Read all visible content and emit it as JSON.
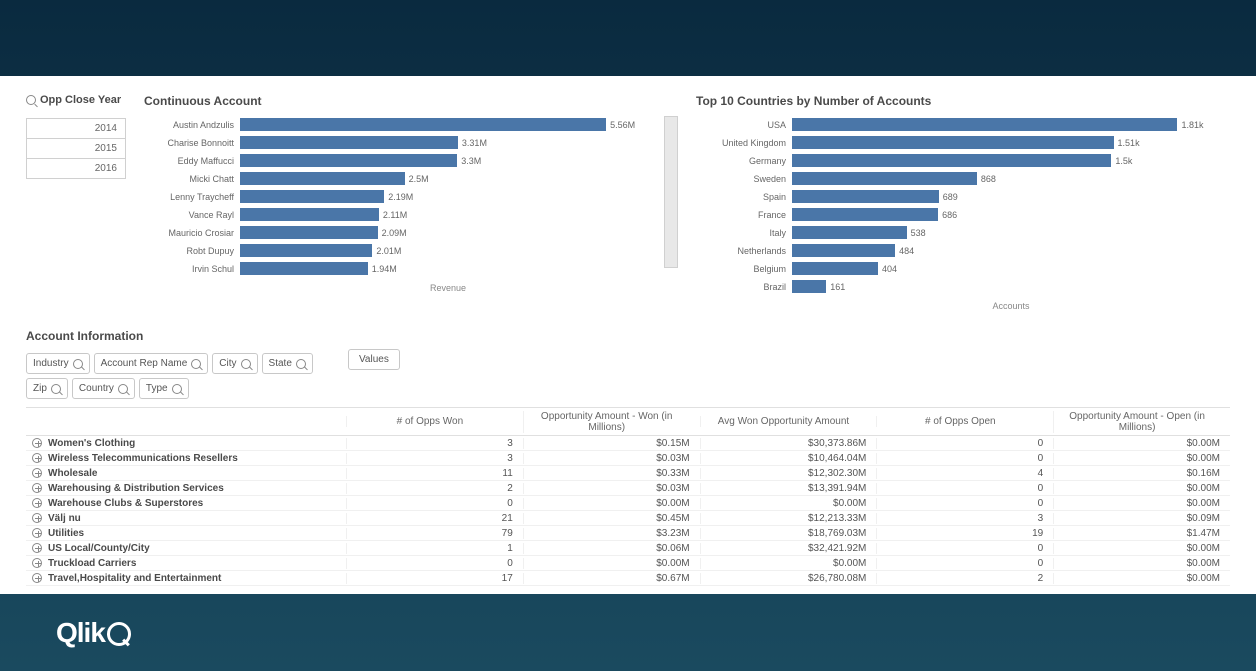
{
  "filter": {
    "title": "Opp Close Year",
    "years": [
      "2014",
      "2015",
      "2016"
    ]
  },
  "chart1": {
    "type": "bar",
    "title": "Continuous Account",
    "axis_label": "Revenue",
    "bar_color": "#4a76a8",
    "label_color": "#666666",
    "max_value": 5.56,
    "bars": [
      {
        "label": "Austin Andzulis",
        "value": 5.56,
        "display": "5.56M"
      },
      {
        "label": "Charise Bonnoitt",
        "value": 3.31,
        "display": "3.31M"
      },
      {
        "label": "Eddy Maffucci",
        "value": 3.3,
        "display": "3.3M"
      },
      {
        "label": "Micki Chatt",
        "value": 2.5,
        "display": "2.5M"
      },
      {
        "label": "Lenny Traycheff",
        "value": 2.19,
        "display": "2.19M"
      },
      {
        "label": "Vance Rayl",
        "value": 2.11,
        "display": "2.11M"
      },
      {
        "label": "Mauricio Crosiar",
        "value": 2.09,
        "display": "2.09M"
      },
      {
        "label": "Robt Dupuy",
        "value": 2.01,
        "display": "2.01M"
      },
      {
        "label": "Irvin Schul",
        "value": 1.94,
        "display": "1.94M"
      }
    ]
  },
  "chart2": {
    "type": "bar",
    "title": "Top 10 Countries by Number of Accounts",
    "axis_label": "Accounts",
    "bar_color": "#4a76a8",
    "label_color": "#666666",
    "max_value": 1810,
    "bars": [
      {
        "label": "USA",
        "value": 1810,
        "display": "1.81k"
      },
      {
        "label": "United Kingdom",
        "value": 1510,
        "display": "1.51k"
      },
      {
        "label": "Germany",
        "value": 1500,
        "display": "1.5k"
      },
      {
        "label": "Sweden",
        "value": 868,
        "display": "868"
      },
      {
        "label": "Spain",
        "value": 689,
        "display": "689"
      },
      {
        "label": "France",
        "value": 686,
        "display": "686"
      },
      {
        "label": "Italy",
        "value": 538,
        "display": "538"
      },
      {
        "label": "Netherlands",
        "value": 484,
        "display": "484"
      },
      {
        "label": "Belgium",
        "value": 404,
        "display": "404"
      },
      {
        "label": "Brazil",
        "value": 161,
        "display": "161"
      }
    ]
  },
  "account_info": {
    "title": "Account Information",
    "filters": [
      "Industry",
      "Account Rep Name",
      "City",
      "State",
      "Zip",
      "Country",
      "Type"
    ],
    "values_label": "Values",
    "columns": [
      "# of Opps Won",
      "Opportunity Amount - Won (in Millions)",
      "Avg Won Opportunity Amount",
      "# of Opps Open",
      "Opportunity Amount - Open (in Millions)"
    ],
    "rows": [
      {
        "name": "Women's Clothing",
        "c": [
          "3",
          "$0.15M",
          "$30,373.86M",
          "0",
          "$0.00M"
        ]
      },
      {
        "name": "Wireless Telecommunications Resellers",
        "c": [
          "3",
          "$0.03M",
          "$10,464.04M",
          "0",
          "$0.00M"
        ]
      },
      {
        "name": "Wholesale",
        "c": [
          "11",
          "$0.33M",
          "$12,302.30M",
          "4",
          "$0.16M"
        ]
      },
      {
        "name": "Warehousing & Distribution Services",
        "c": [
          "2",
          "$0.03M",
          "$13,391.94M",
          "0",
          "$0.00M"
        ]
      },
      {
        "name": "Warehouse Clubs & Superstores",
        "c": [
          "0",
          "$0.00M",
          "$0.00M",
          "0",
          "$0.00M"
        ]
      },
      {
        "name": "Välj nu",
        "c": [
          "21",
          "$0.45M",
          "$12,213.33M",
          "3",
          "$0.09M"
        ]
      },
      {
        "name": "Utilities",
        "c": [
          "79",
          "$3.23M",
          "$18,769.03M",
          "19",
          "$1.47M"
        ]
      },
      {
        "name": "US Local/County/City",
        "c": [
          "1",
          "$0.06M",
          "$32,421.92M",
          "0",
          "$0.00M"
        ]
      },
      {
        "name": "Truckload Carriers",
        "c": [
          "0",
          "$0.00M",
          "$0.00M",
          "0",
          "$0.00M"
        ]
      },
      {
        "name": "Travel,Hospitality and Entertainment",
        "c": [
          "17",
          "$0.67M",
          "$26,780.08M",
          "2",
          "$0.00M"
        ]
      }
    ]
  },
  "logo_text": "Qlik"
}
